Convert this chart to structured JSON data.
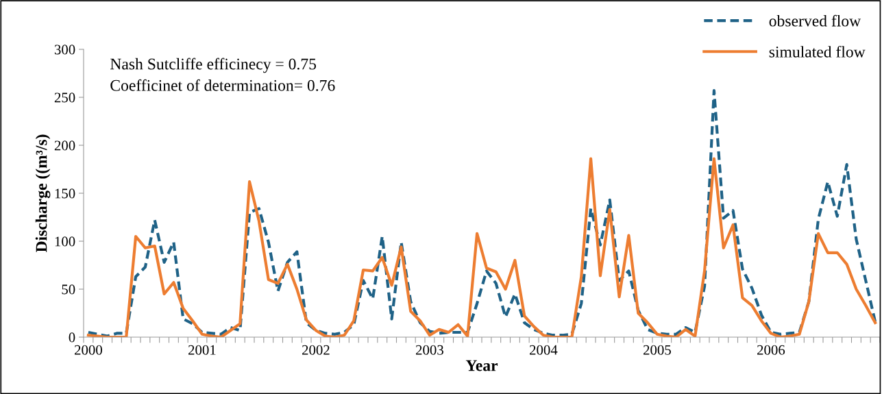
{
  "chart_data": {
    "type": "line",
    "xlabel": "Year",
    "ylabel": "Discharge ((m³/s)",
    "categories": [
      "2000",
      null,
      null,
      null,
      null,
      null,
      null,
      null,
      null,
      null,
      null,
      null,
      "2001",
      null,
      null,
      null,
      null,
      null,
      null,
      null,
      null,
      null,
      null,
      null,
      "2002",
      null,
      null,
      null,
      null,
      null,
      null,
      null,
      null,
      null,
      null,
      null,
      "2003",
      null,
      null,
      null,
      null,
      null,
      null,
      null,
      null,
      null,
      null,
      null,
      "2004",
      null,
      null,
      null,
      null,
      null,
      null,
      null,
      null,
      null,
      null,
      null,
      "2005",
      null,
      null,
      null,
      null,
      null,
      null,
      null,
      null,
      null,
      null,
      null,
      "2006",
      null,
      null,
      null,
      null,
      null,
      null,
      null,
      null,
      null,
      null,
      null
    ],
    "series": [
      {
        "name": "observed flow",
        "color": "#1f6287",
        "line_style": "dashed",
        "values": [
          5,
          3,
          1,
          4,
          4,
          63,
          73,
          122,
          78,
          99,
          19,
          14,
          5,
          4,
          3,
          10,
          7,
          130,
          134,
          99,
          48,
          78,
          89,
          15,
          7,
          4,
          3,
          5,
          13,
          59,
          40,
          105,
          19,
          99,
          37,
          15,
          6,
          4,
          5,
          5,
          5,
          35,
          69,
          56,
          21,
          45,
          15,
          8,
          4,
          2,
          2,
          3,
          35,
          134,
          96,
          143,
          59,
          69,
          28,
          8,
          4,
          3,
          3,
          10,
          5,
          53,
          257,
          124,
          132,
          71,
          51,
          23,
          5,
          3,
          4,
          5,
          37,
          123,
          162,
          126,
          180,
          102,
          59,
          16
        ]
      },
      {
        "name": "simulated flow",
        "color": "#ed7d31",
        "line_style": "solid",
        "values": [
          2,
          1,
          0,
          0,
          0,
          105,
          93,
          95,
          45,
          57,
          30,
          17,
          3,
          1,
          0,
          7,
          14,
          162,
          121,
          60,
          56,
          76,
          50,
          18,
          7,
          1,
          0,
          2,
          17,
          70,
          69,
          83,
          54,
          94,
          27,
          17,
          2,
          8,
          5,
          13,
          1,
          108,
          72,
          68,
          50,
          80,
          22,
          11,
          2,
          0,
          0,
          0,
          63,
          186,
          64,
          133,
          42,
          106,
          25,
          15,
          3,
          1,
          0,
          8,
          1,
          69,
          186,
          93,
          117,
          41,
          33,
          17,
          4,
          0,
          1,
          3,
          37,
          108,
          88,
          88,
          76,
          50,
          33,
          15
        ]
      }
    ],
    "ylim": [
      0,
      300
    ],
    "yticks": [
      0,
      50,
      100,
      150,
      200,
      250,
      300
    ],
    "grid": false,
    "legend": "top right",
    "annotations": [
      "Nash Sutcliffe efficinecy = 0.75",
      "Coefficinet of determination= 0.76"
    ]
  }
}
